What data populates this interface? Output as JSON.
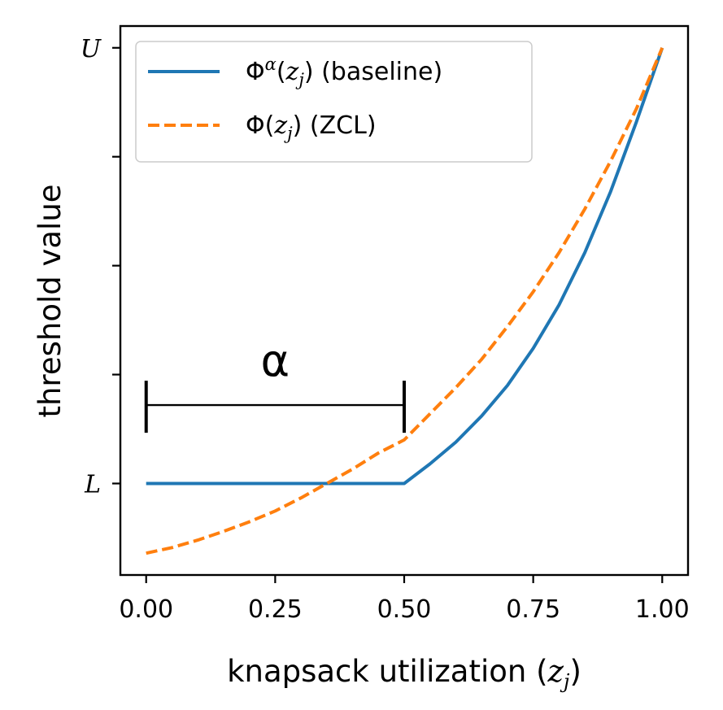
{
  "chart_data": {
    "type": "line",
    "xlabel": "knapsack utilization (z_j)",
    "ylabel": "threshold value",
    "xlim": [
      -0.05,
      1.05
    ],
    "ylim": [
      -0.21,
      1.05
    ],
    "x_ticks": [
      0.0,
      0.25,
      0.5,
      0.75,
      1.0
    ],
    "x_tick_labels": [
      "0.00",
      "0.25",
      "0.50",
      "0.75",
      "1.00"
    ],
    "y_ticks": [
      0.0,
      0.25,
      0.5,
      0.75,
      1.0
    ],
    "y_tick_labels": [
      "L",
      "",
      "",
      "",
      "U"
    ],
    "grid": false,
    "legend_position": "upper-left",
    "series": [
      {
        "name": "Φ^α(z_j) (baseline)",
        "color": "#1f77b4",
        "style": "solid",
        "x": [
          0.0,
          0.05,
          0.1,
          0.15,
          0.2,
          0.25,
          0.3,
          0.35,
          0.4,
          0.45,
          0.5,
          0.55,
          0.6,
          0.65,
          0.7,
          0.75,
          0.8,
          0.85,
          0.9,
          0.95,
          1.0
        ],
        "y": [
          0.0,
          0.0,
          0.0,
          0.0,
          0.0,
          0.0,
          0.0,
          0.0,
          0.0,
          0.0,
          0.0,
          0.045,
          0.095,
          0.155,
          0.225,
          0.31,
          0.41,
          0.53,
          0.67,
          0.83,
          1.0
        ]
      },
      {
        "name": "Φ(z_j) (ZCL)",
        "color": "#ff7f0e",
        "style": "dashed",
        "x": [
          0.0,
          0.05,
          0.1,
          0.15,
          0.2,
          0.25,
          0.3,
          0.35,
          0.4,
          0.45,
          0.5,
          0.55,
          0.6,
          0.65,
          0.7,
          0.75,
          0.8,
          0.85,
          0.9,
          0.95,
          1.0
        ],
        "y": [
          -0.16,
          -0.147,
          -0.13,
          -0.11,
          -0.088,
          -0.063,
          -0.033,
          0.0,
          0.033,
          0.07,
          0.1,
          0.16,
          0.22,
          0.285,
          0.36,
          0.44,
          0.53,
          0.63,
          0.74,
          0.86,
          1.0
        ]
      }
    ],
    "annotations": [
      {
        "text": "α",
        "x_start": 0.0,
        "x_end": 0.5,
        "y": 0.18
      }
    ]
  }
}
